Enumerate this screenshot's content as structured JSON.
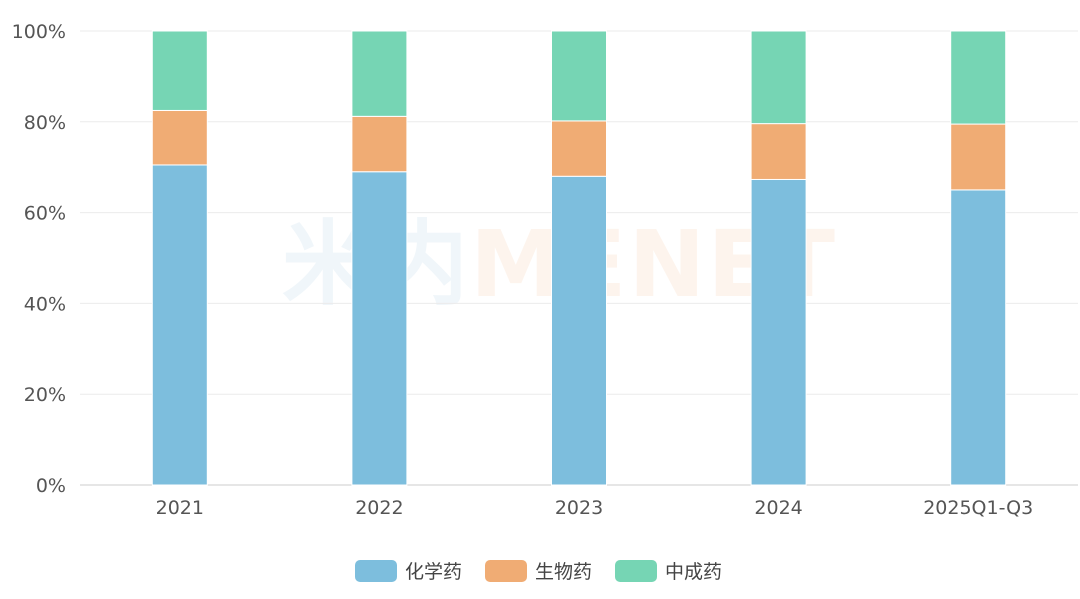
{
  "chart_data": {
    "type": "bar",
    "stacked": true,
    "percent": true,
    "categories": [
      "2021",
      "2022",
      "2023",
      "2024",
      "2025Q1-Q3"
    ],
    "series": [
      {
        "name": "化学药",
        "color": "#7dbedd",
        "values": [
          70.5,
          69.0,
          68.0,
          67.3,
          65.0
        ]
      },
      {
        "name": "生物药",
        "color": "#f0ac74",
        "values": [
          12.0,
          12.2,
          12.2,
          12.3,
          14.5
        ]
      },
      {
        "name": "中成药",
        "color": "#76d5b4",
        "values": [
          17.5,
          18.8,
          19.8,
          20.4,
          20.5
        ]
      }
    ],
    "y_ticks": [
      "0%",
      "20%",
      "40%",
      "60%",
      "80%",
      "100%"
    ],
    "ylim": [
      0,
      100
    ],
    "grid": true,
    "legend_position": "bottom-center"
  },
  "watermark": {
    "part1": "米内",
    "part2": "MENET"
  }
}
